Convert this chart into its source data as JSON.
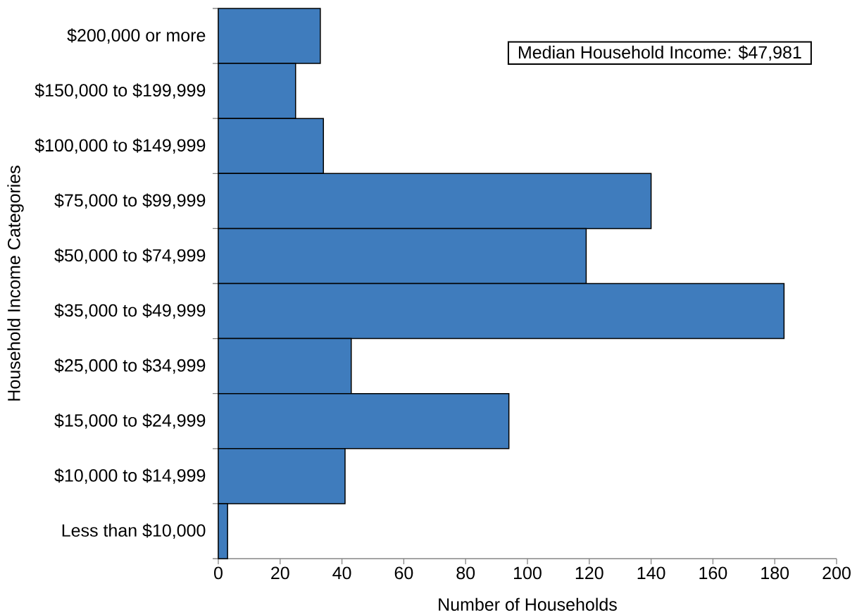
{
  "chart_data": {
    "type": "bar",
    "orientation": "horizontal",
    "xlabel": "Number of Households",
    "ylabel": "Household Income Categories",
    "categories": [
      "$200,000 or more",
      "$150,000 to $199,999",
      "$100,000 to $149,999",
      "$75,000 to $99,999",
      "$50,000 to $74,999",
      "$35,000 to $49,999",
      "$25,000 to $34,999",
      "$15,000 to $24,999",
      "$10,000 to $14,999",
      "Less than $10,000"
    ],
    "values": [
      33,
      25,
      34,
      140,
      119,
      183,
      43,
      94,
      41,
      3
    ],
    "color": "#3f7cbd",
    "xlim": [
      0,
      200
    ],
    "xticks": [
      0,
      20,
      40,
      60,
      80,
      100,
      120,
      140,
      160,
      180,
      200
    ],
    "annotations": [
      "Median Household Income: $47,981"
    ]
  }
}
